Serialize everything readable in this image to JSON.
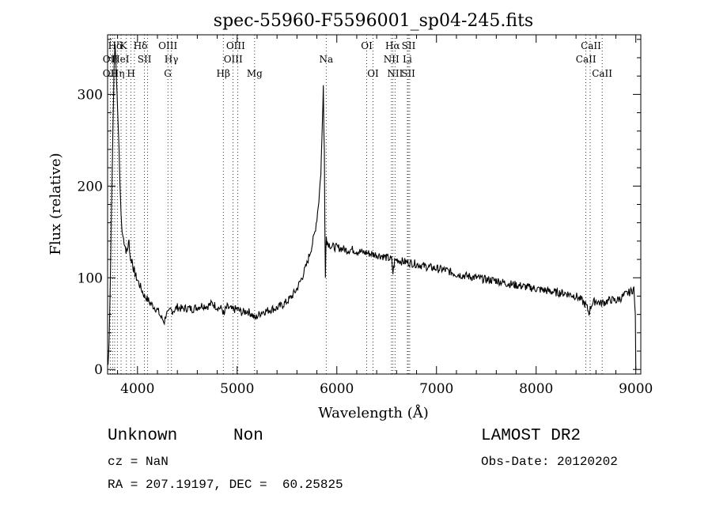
{
  "chart_data": {
    "type": "line",
    "title": "spec-55960-F5596001_sp04-245.fits",
    "xlabel": "Wavelength (Å)",
    "ylabel": "Flux (relative)",
    "xlim": [
      3700,
      9050
    ],
    "ylim": [
      -5,
      365
    ],
    "xticks": [
      4000,
      5000,
      6000,
      7000,
      8000,
      9000
    ],
    "yticks": [
      0,
      100,
      200,
      300
    ],
    "grid": false,
    "series": [
      {
        "name": "",
        "x": [
          3705,
          3715,
          3725,
          3735,
          3745,
          3755,
          3765,
          3775,
          3785,
          3795,
          3805,
          3815,
          3825,
          3835,
          3845,
          3855,
          3865,
          3875,
          3885,
          3895,
          3905,
          3915,
          3925,
          3935,
          3945,
          3955,
          3965,
          3975,
          3990,
          4010,
          4030,
          4050,
          4070,
          4090,
          4110,
          4130,
          4150,
          4170,
          4190,
          4210,
          4230,
          4250,
          4270,
          4290,
          4310,
          4330,
          4350,
          4370,
          4400,
          4450,
          4500,
          4550,
          4600,
          4650,
          4700,
          4750,
          4800,
          4850,
          4870,
          4880,
          4900,
          4950,
          5000,
          5050,
          5100,
          5150,
          5180,
          5200,
          5250,
          5300,
          5350,
          5400,
          5450,
          5500,
          5550,
          5600,
          5650,
          5700,
          5750,
          5780,
          5800,
          5820,
          5840,
          5850,
          5860,
          5865,
          5870,
          5875,
          5880,
          5885,
          5890,
          5895,
          5900,
          5910,
          5930,
          5950,
          6000,
          6050,
          6100,
          6150,
          6200,
          6250,
          6300,
          6350,
          6400,
          6450,
          6500,
          6550,
          6563,
          6580,
          6600,
          6650,
          6700,
          6750,
          6800,
          6900,
          7000,
          7100,
          7200,
          7300,
          7400,
          7500,
          7600,
          7700,
          7800,
          7900,
          8000,
          8100,
          8200,
          8300,
          8400,
          8450,
          8500,
          8530,
          8560,
          8600,
          8650,
          8700,
          8750,
          8800,
          8850,
          8900,
          8950,
          8980,
          8995,
          9000
        ],
        "y": [
          5,
          30,
          80,
          150,
          210,
          270,
          330,
          355,
          330,
          300,
          270,
          240,
          200,
          170,
          150,
          145,
          140,
          135,
          130,
          128,
          135,
          140,
          125,
          118,
          120,
          112,
          108,
          105,
          100,
          95,
          90,
          85,
          80,
          78,
          75,
          72,
          70,
          68,
          66,
          63,
          58,
          55,
          52,
          62,
          60,
          65,
          64,
          65,
          68,
          66,
          67,
          66,
          68,
          70,
          69,
          72,
          68,
          66,
          58,
          65,
          68,
          65,
          66,
          62,
          64,
          60,
          55,
          58,
          63,
          64,
          66,
          67,
          70,
          74,
          80,
          88,
          100,
          115,
          135,
          150,
          165,
          185,
          215,
          250,
          290,
          310,
          260,
          240,
          160,
          100,
          130,
          145,
          140,
          138,
          136,
          134,
          133,
          132,
          130,
          131,
          129,
          128,
          127,
          126,
          125,
          124,
          122,
          120,
          105,
          118,
          120,
          118,
          117,
          116,
          115,
          112,
          110,
          108,
          104,
          102,
          100,
          98,
          97,
          94,
          92,
          90,
          88,
          86,
          84,
          83,
          80,
          76,
          70,
          62,
          72,
          75,
          72,
          74,
          76,
          75,
          78,
          82,
          85,
          88,
          60,
          0
        ]
      }
    ],
    "lines": [
      {
        "name": "Hδ",
        "x": 3775,
        "row": 0
      },
      {
        "name": "K",
        "x": 3860,
        "row": 0
      },
      {
        "name": "Hδ",
        "x": 4030,
        "row": 0
      },
      {
        "name": "OIII",
        "x": 4305,
        "row": 0
      },
      {
        "name": "OIII",
        "x": 4985,
        "row": 0
      },
      {
        "name": "OI",
        "x": 6300,
        "row": 0
      },
      {
        "name": "Hα",
        "x": 6560,
        "row": 0
      },
      {
        "name": "SII",
        "x": 6720,
        "row": 0
      },
      {
        "name": "CaII",
        "x": 8550,
        "row": 0
      },
      {
        "name": "OII",
        "x": 3727,
        "row": 1
      },
      {
        "name": "HeI",
        "x": 3830,
        "row": 1
      },
      {
        "name": "SII",
        "x": 4070,
        "row": 1
      },
      {
        "name": "Hγ",
        "x": 4340,
        "row": 1
      },
      {
        "name": "OIII",
        "x": 4960,
        "row": 1
      },
      {
        "name": "Na",
        "x": 5893,
        "row": 1
      },
      {
        "name": "NII",
        "x": 6548,
        "row": 1
      },
      {
        "name": "Li",
        "x": 6708,
        "row": 1
      },
      {
        "name": "CaII",
        "x": 8500,
        "row": 1
      },
      {
        "name": "OII",
        "x": 3727,
        "row": 2
      },
      {
        "name": "Hη",
        "x": 3800,
        "row": 2
      },
      {
        "name": "H",
        "x": 3935,
        "row": 2
      },
      {
        "name": "G",
        "x": 4304,
        "row": 2
      },
      {
        "name": "Hβ",
        "x": 4861,
        "row": 2
      },
      {
        "name": "Mg",
        "x": 5175,
        "row": 2
      },
      {
        "name": "OI",
        "x": 6363,
        "row": 2
      },
      {
        "name": "NII",
        "x": 6584,
        "row": 2
      },
      {
        "name": "SII",
        "x": 6717,
        "row": 2
      },
      {
        "name": "CaII",
        "x": 8662,
        "row": 2
      }
    ],
    "line_markers": [
      3727,
      3750,
      3771,
      3798,
      3835,
      3889,
      3934,
      3969,
      4070,
      4102,
      4305,
      4341,
      4861,
      4959,
      5007,
      5175,
      5893,
      6300,
      6363,
      6548,
      6563,
      6584,
      6708,
      6717,
      6731,
      8498,
      8542,
      8662
    ]
  },
  "info": {
    "class": "Unknown",
    "subclass": "Non",
    "survey": "LAMOST DR2",
    "cz": "cz = NaN",
    "obs_date": "Obs-Date: 20120202",
    "coords": "RA = 207.19197, DEC =  60.25825"
  }
}
